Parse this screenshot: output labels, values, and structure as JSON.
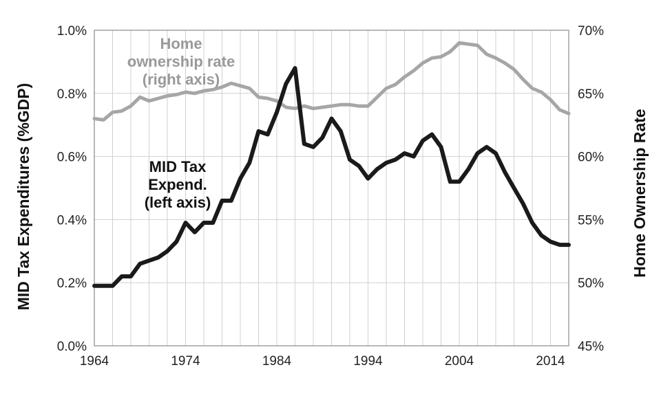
{
  "chart_data": {
    "type": "line",
    "title": "",
    "xlabel": "",
    "ylabel_left": "MID Tax Expenditures (%GDP)",
    "ylabel_right": "Home Ownership Rate",
    "xlim": [
      1964,
      2016
    ],
    "ylim_left": [
      0.0,
      1.0
    ],
    "ylim_right": [
      45,
      70
    ],
    "x_ticks": [
      "1964",
      "1974",
      "1984",
      "1994",
      "2004",
      "2014"
    ],
    "y_ticks_left": [
      "0.0%",
      "0.2%",
      "0.4%",
      "0.6%",
      "0.8%",
      "1.0%"
    ],
    "y_ticks_right": [
      "45%",
      "50%",
      "55%",
      "60%",
      "65%",
      "70%"
    ],
    "grid": true,
    "series": [
      {
        "name": "MID Tax Expend. (left axis)",
        "axis": "left",
        "color": "#1a1a1a",
        "x": [
          1964,
          1965,
          1966,
          1967,
          1968,
          1969,
          1970,
          1971,
          1972,
          1973,
          1974,
          1975,
          1976,
          1977,
          1978,
          1979,
          1980,
          1981,
          1982,
          1983,
          1984,
          1985,
          1986,
          1987,
          1988,
          1989,
          1990,
          1991,
          1992,
          1993,
          1994,
          1995,
          1996,
          1997,
          1998,
          1999,
          2000,
          2001,
          2002,
          2003,
          2004,
          2005,
          2006,
          2007,
          2008,
          2009,
          2010,
          2011,
          2012,
          2013,
          2014,
          2015,
          2016
        ],
        "values": [
          0.19,
          0.19,
          0.19,
          0.22,
          0.22,
          0.26,
          0.27,
          0.28,
          0.3,
          0.33,
          0.39,
          0.36,
          0.39,
          0.39,
          0.46,
          0.46,
          0.53,
          0.58,
          0.68,
          0.67,
          0.74,
          0.83,
          0.88,
          0.64,
          0.63,
          0.66,
          0.72,
          0.68,
          0.59,
          0.57,
          0.53,
          0.56,
          0.58,
          0.59,
          0.61,
          0.6,
          0.65,
          0.67,
          0.63,
          0.52,
          0.52,
          0.56,
          0.61,
          0.63,
          0.61,
          0.55,
          0.5,
          0.45,
          0.39,
          0.35,
          0.33,
          0.32,
          0.32
        ]
      },
      {
        "name": "Home ownership rate (right axis)",
        "axis": "right",
        "color": "#a6a6a6",
        "x": [
          1964,
          1965,
          1966,
          1967,
          1968,
          1969,
          1970,
          1971,
          1972,
          1973,
          1974,
          1975,
          1976,
          1977,
          1978,
          1979,
          1980,
          1981,
          1982,
          1983,
          1984,
          1985,
          1986,
          1987,
          1988,
          1989,
          1990,
          1991,
          1992,
          1993,
          1994,
          1995,
          1996,
          1997,
          1998,
          1999,
          2000,
          2001,
          2002,
          2003,
          2004,
          2005,
          2006,
          2007,
          2008,
          2009,
          2010,
          2011,
          2012,
          2013,
          2014,
          2015,
          2016
        ],
        "values": [
          63.0,
          62.9,
          63.5,
          63.6,
          64.0,
          64.7,
          64.4,
          64.6,
          64.8,
          64.9,
          65.1,
          65.0,
          65.2,
          65.3,
          65.5,
          65.8,
          65.6,
          65.4,
          64.7,
          64.6,
          64.4,
          63.9,
          63.8,
          64.0,
          63.8,
          63.9,
          64.0,
          64.1,
          64.1,
          64.0,
          64.0,
          64.7,
          65.4,
          65.7,
          66.3,
          66.8,
          67.4,
          67.8,
          67.9,
          68.3,
          69.0,
          68.9,
          68.8,
          68.1,
          67.8,
          67.4,
          66.9,
          66.1,
          65.4,
          65.1,
          64.5,
          63.7,
          63.4
        ]
      }
    ],
    "annotations": {
      "left_series": [
        "MID Tax",
        "Expend.",
        "(left axis)"
      ],
      "right_series": [
        "Home",
        "ownership rate",
        "(right axis)"
      ]
    }
  }
}
